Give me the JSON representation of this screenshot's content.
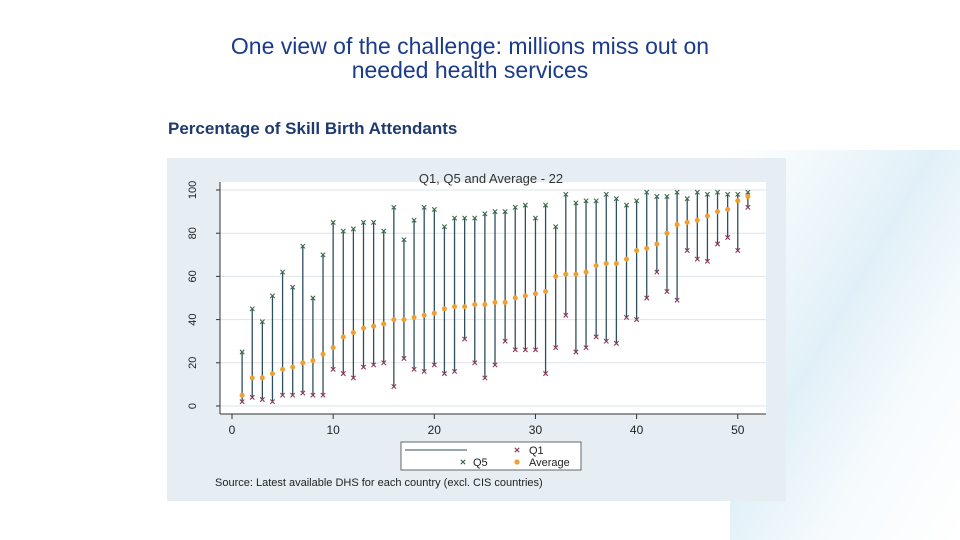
{
  "slide": {
    "title_line1": "One view of the challenge: millions miss out on",
    "title_line2": "needed health services",
    "subtitle": "Percentage of Skill Birth Attendants"
  },
  "chart_data": {
    "type": "scatter",
    "title": "Q1, Q5 and Average - 22",
    "xlim": [
      0,
      52
    ],
    "ylim": [
      0,
      100
    ],
    "x_ticks": [
      0,
      10,
      20,
      30,
      40,
      50
    ],
    "y_ticks": [
      0,
      20,
      40,
      60,
      80,
      100
    ],
    "grid": true,
    "legend_position": "bottom",
    "source": "Source: Latest available DHS for each country (excl. CIS countries)",
    "colors": {
      "range_line": "#2f4f5f",
      "q1": "#8b3a5a",
      "q5": "#3d6b4a",
      "average": "#f0a030",
      "panel": "#e6eef3",
      "plot_bg": "#ffffff"
    },
    "x": [
      1,
      2,
      3,
      4,
      5,
      6,
      7,
      8,
      9,
      10,
      11,
      12,
      13,
      14,
      15,
      16,
      17,
      18,
      19,
      20,
      21,
      22,
      23,
      24,
      25,
      26,
      27,
      28,
      29,
      30,
      31,
      32,
      33,
      34,
      35,
      36,
      37,
      38,
      39,
      40,
      41,
      42,
      43,
      44,
      45,
      46,
      47,
      48,
      49,
      50,
      51
    ],
    "series": [
      {
        "name": "Q1",
        "marker": "x",
        "values": [
          2,
          4,
          3,
          2,
          5,
          5,
          6,
          5,
          5,
          17,
          15,
          13,
          18,
          19,
          20,
          9,
          22,
          17,
          16,
          19,
          15,
          16,
          31,
          20,
          13,
          19,
          30,
          26,
          26,
          26,
          15,
          27,
          42,
          25,
          27,
          32,
          30,
          29,
          41,
          40,
          50,
          62,
          53,
          49,
          72,
          68,
          67,
          75,
          78,
          72,
          92
        ]
      },
      {
        "name": "Q5",
        "marker": "x",
        "values": [
          25,
          45,
          39,
          51,
          62,
          55,
          74,
          50,
          70,
          85,
          81,
          82,
          85,
          85,
          81,
          92,
          77,
          86,
          92,
          91,
          83,
          87,
          87,
          87,
          89,
          90,
          90,
          92,
          93,
          87,
          93,
          83,
          98,
          94,
          95,
          95,
          98,
          96,
          93,
          95,
          99,
          97,
          97,
          99,
          96,
          99,
          98,
          99,
          98,
          98,
          99
        ]
      },
      {
        "name": "Average",
        "marker": "dot",
        "values": [
          5,
          13,
          13,
          15,
          17,
          18,
          20,
          21,
          24,
          27,
          32,
          34,
          36,
          37,
          38,
          40,
          40,
          41,
          42,
          43,
          45,
          46,
          46,
          47,
          47,
          48,
          48,
          50,
          51,
          52,
          53,
          60,
          61,
          61,
          62,
          65,
          66,
          66,
          68,
          72,
          73,
          75,
          80,
          84,
          85,
          86,
          88,
          90,
          91,
          95,
          97
        ]
      }
    ]
  }
}
